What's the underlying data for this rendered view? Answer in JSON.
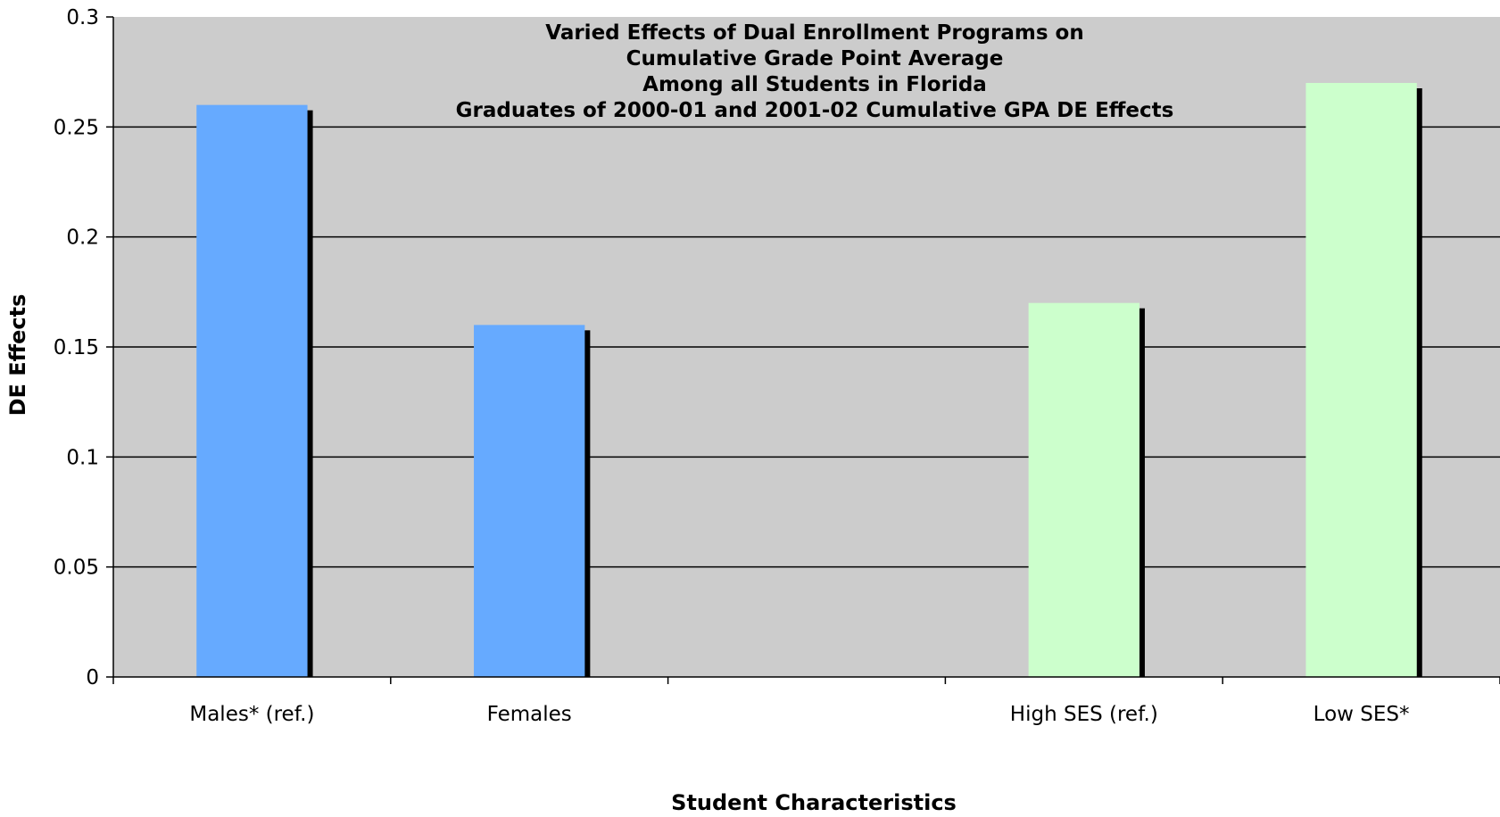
{
  "chart_data": {
    "type": "bar",
    "title_lines": [
      "Varied Effects of Dual Enrollment Programs on",
      "Cumulative Grade Point Average",
      "Among all Students in Florida",
      "Graduates of 2000-01 and 2001-02 Cumulative GPA DE Effects"
    ],
    "xlabel": "Student Characteristics",
    "ylabel": "DE Effects",
    "ylim": [
      0,
      0.3
    ],
    "yticks": [
      "0",
      "0.05",
      "0.1",
      "0.15",
      "0.2",
      "0.25",
      "0.3"
    ],
    "grid": true,
    "categories": [
      "Males* (ref.)",
      "Females",
      "",
      "High SES (ref.)",
      "Low SES*"
    ],
    "values": [
      0.26,
      0.16,
      null,
      0.17,
      0.27
    ],
    "bar_colors": [
      "#66aaff",
      "#66aaff",
      null,
      "#ccffcc",
      "#ccffcc"
    ],
    "plot_background": "#cccccc"
  }
}
